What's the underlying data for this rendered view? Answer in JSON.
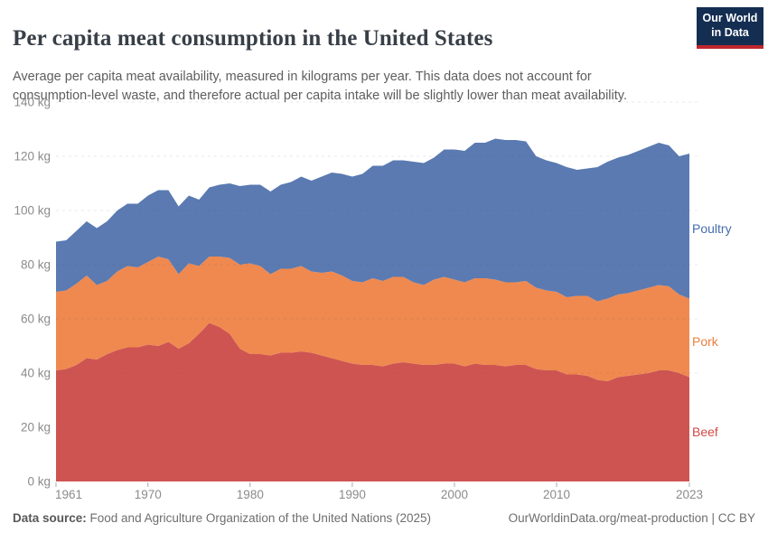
{
  "header": {
    "title": "Per capita meat consumption in the United States",
    "subtitle_lines": [
      "Average per capita meat availability, measured in kilograms per year. This data does not account for",
      "consumption-level waste, and therefore actual per capita intake will be slightly lower than meat availability."
    ]
  },
  "logo": {
    "line1": "Our World",
    "line2": "in Data",
    "bg_color": "#142e52",
    "bar_color": "#c0272d"
  },
  "chart_data": {
    "type": "area",
    "stacked": true,
    "title": "Per capita meat consumption in the United States",
    "unit": "kg",
    "xlabel": "",
    "ylabel": "",
    "ylim": [
      0,
      140
    ],
    "grid": true,
    "legend_position": "right-edge-labels",
    "x": [
      1961,
      1962,
      1963,
      1964,
      1965,
      1966,
      1967,
      1968,
      1969,
      1970,
      1971,
      1972,
      1973,
      1974,
      1975,
      1976,
      1977,
      1978,
      1979,
      1980,
      1981,
      1982,
      1983,
      1984,
      1985,
      1986,
      1987,
      1988,
      1989,
      1990,
      1991,
      1992,
      1993,
      1994,
      1995,
      1996,
      1997,
      1998,
      1999,
      2000,
      2001,
      2002,
      2003,
      2004,
      2005,
      2006,
      2007,
      2008,
      2009,
      2010,
      2011,
      2012,
      2013,
      2014,
      2015,
      2016,
      2017,
      2018,
      2019,
      2020,
      2021,
      2022,
      2023
    ],
    "series": [
      {
        "name": "Beef",
        "color": "#ce5452",
        "label_color": "#d04a47",
        "values": [
          41,
          41.5,
          43,
          45.5,
          45,
          47,
          48.5,
          49.5,
          49.5,
          50.5,
          50,
          51.5,
          49,
          51,
          54.5,
          58.5,
          57,
          54.5,
          49,
          47,
          47,
          46.5,
          47.5,
          47.5,
          48,
          47.5,
          46.5,
          45.5,
          44.5,
          43.5,
          43,
          43,
          42.5,
          43.5,
          44,
          43.5,
          43,
          43,
          43.5,
          43.5,
          42.5,
          43.5,
          43,
          43,
          42.5,
          43,
          43,
          41.5,
          41,
          41,
          39.5,
          39.5,
          39,
          37.5,
          37,
          38.5,
          39,
          39.5,
          40,
          41,
          41,
          40,
          38.5
        ]
      },
      {
        "name": "Pork",
        "color": "#ef8950",
        "label_color": "#e97e3d",
        "values": [
          29,
          29,
          30,
          30.5,
          27.5,
          27,
          29,
          30,
          29.5,
          30.5,
          33,
          30.5,
          27.5,
          29.5,
          25,
          24.5,
          26,
          28,
          31,
          33.5,
          32.5,
          30,
          31,
          31,
          31.5,
          30,
          30.5,
          32,
          31.5,
          30.5,
          30.5,
          32,
          31.5,
          32,
          31.5,
          30,
          29.5,
          31.5,
          32,
          31,
          31,
          31.5,
          32,
          31.5,
          31,
          30.5,
          31,
          30,
          29.5,
          29,
          28.5,
          29,
          29.5,
          29,
          30.5,
          30.5,
          30.5,
          31,
          31.5,
          31.5,
          31,
          29,
          29
        ]
      },
      {
        "name": "Poultry",
        "color": "#5a7ab1",
        "label_color": "#476eae",
        "values": [
          18.5,
          18.5,
          19.5,
          20,
          21,
          22,
          22.5,
          23,
          23.5,
          24.5,
          24.5,
          25.5,
          25,
          25,
          24.5,
          25.5,
          26.5,
          27.5,
          29,
          29,
          30,
          30.5,
          31,
          32,
          33,
          33.5,
          35.5,
          36.5,
          37.5,
          38.5,
          40,
          41.5,
          42.5,
          43,
          43,
          44.5,
          45,
          45,
          47,
          48,
          48.5,
          50,
          50,
          52,
          52.5,
          52.5,
          51.5,
          48.5,
          48,
          47.5,
          48,
          46.5,
          47,
          49.5,
          50.5,
          50.5,
          51,
          51.5,
          52,
          52.5,
          52,
          51,
          53.5
        ]
      }
    ],
    "yticks": [
      0,
      20,
      40,
      60,
      80,
      100,
      120,
      140
    ],
    "ytick_labels": [
      "0 kg",
      "20 kg",
      "40 kg",
      "60 kg",
      "80 kg",
      "100 kg",
      "120 kg",
      "140 kg"
    ],
    "xticks": [
      1961,
      1970,
      1980,
      1990,
      2000,
      2010,
      2023
    ],
    "xtick_labels": [
      "1961",
      "1970",
      "1980",
      "1990",
      "2000",
      "2010",
      "2023"
    ]
  },
  "footer": {
    "data_source_label": "Data source:",
    "data_source_value": " Food and Agriculture Organization of the United Nations (2025)",
    "link_text": "OurWorldinData.org/meat-production | CC BY"
  }
}
